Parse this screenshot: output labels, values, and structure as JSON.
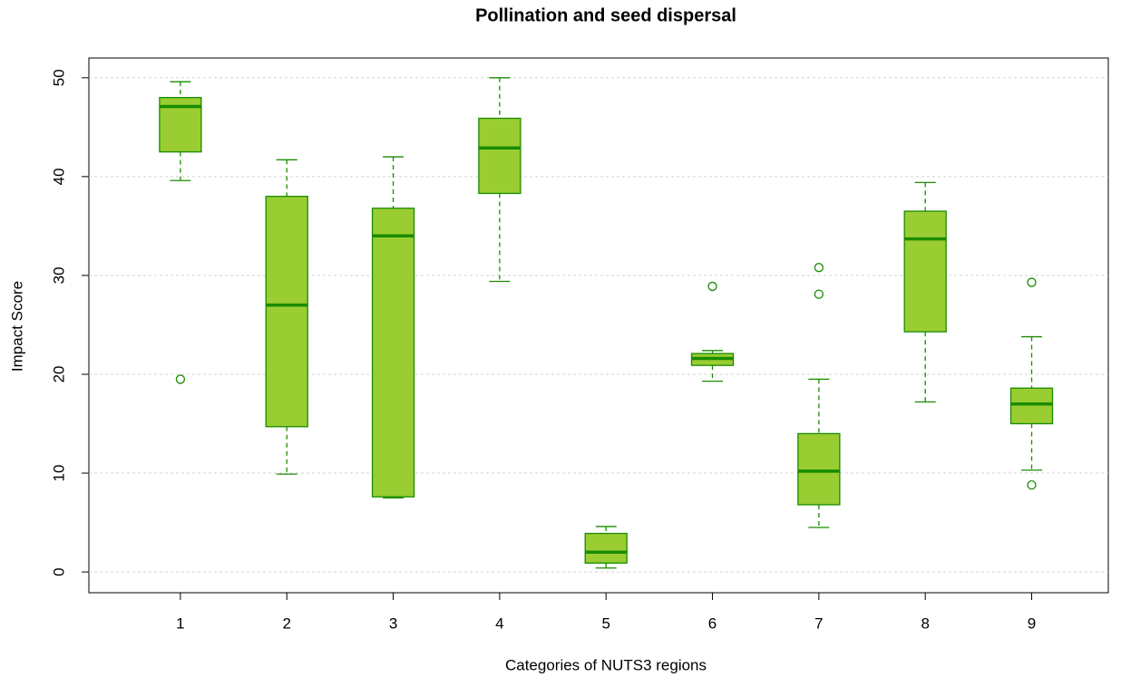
{
  "chart_data": {
    "type": "boxplot",
    "title": "Pollination and seed dispersal",
    "x_label": "Categories of NUTS3 regions",
    "y_label": "Impact Score",
    "categories": [
      "1",
      "2",
      "3",
      "4",
      "5",
      "6",
      "7",
      "8",
      "9"
    ],
    "boxes": [
      {
        "min": 39.6,
        "q1": 42.5,
        "median": 47.1,
        "q3": 48.0,
        "max": 49.6,
        "outliers": [
          19.5
        ]
      },
      {
        "min": 9.9,
        "q1": 14.7,
        "median": 27.0,
        "q3": 38.0,
        "max": 41.7,
        "outliers": []
      },
      {
        "min": 7.5,
        "q1": 7.6,
        "median": 34.0,
        "q3": 36.8,
        "max": 42.0,
        "outliers": []
      },
      {
        "min": 29.4,
        "q1": 38.3,
        "median": 42.9,
        "q3": 45.9,
        "max": 50.0,
        "outliers": []
      },
      {
        "min": 0.4,
        "q1": 0.9,
        "median": 2.0,
        "q3": 3.9,
        "max": 4.6,
        "outliers": []
      },
      {
        "min": 19.3,
        "q1": 20.9,
        "median": 21.6,
        "q3": 22.1,
        "max": 22.4,
        "outliers": [
          28.9
        ]
      },
      {
        "min": 4.5,
        "q1": 6.8,
        "median": 10.2,
        "q3": 14.0,
        "max": 19.5,
        "outliers": [
          30.8,
          28.1
        ]
      },
      {
        "min": 17.2,
        "q1": 24.3,
        "median": 33.7,
        "q3": 36.5,
        "max": 39.4,
        "outliers": []
      },
      {
        "min": 10.3,
        "q1": 15.0,
        "median": 17.0,
        "q3": 18.6,
        "max": 23.8,
        "outliers": [
          29.3,
          8.8
        ]
      }
    ],
    "color": "#9acd32",
    "edge_color": "#1a8c00",
    "ylim": [
      -2.1,
      52
    ],
    "yticks": [
      0,
      10,
      20,
      30,
      40,
      50
    ],
    "grid": true
  }
}
